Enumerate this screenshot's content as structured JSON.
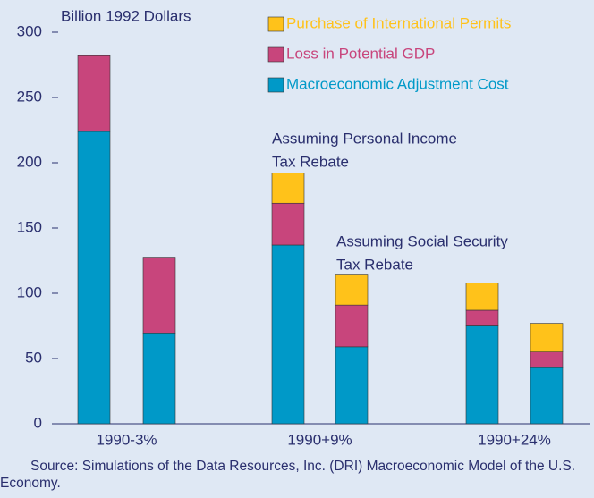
{
  "chart_data": {
    "type": "stacked_bar",
    "y_label": "Billion 1992 Dollars",
    "categories": [
      "1990-3%",
      null,
      "1990+9%",
      null,
      "1990+24%",
      null
    ],
    "series": [
      {
        "name": "Macroeconomic Adjustment Cost",
        "color": "#0099c8",
        "values": [
          224,
          69,
          137,
          59,
          75,
          43
        ]
      },
      {
        "name": "Loss in Potential GDP",
        "color": "#c8457c",
        "values": [
          58,
          58,
          32,
          32,
          12,
          12
        ]
      },
      {
        "name": "Purchase of International Permits",
        "color": "#ffc21a",
        "values": [
          0,
          0,
          23,
          23,
          21,
          22
        ]
      }
    ],
    "ylim": [
      0,
      300
    ],
    "yticks": [
      0,
      50,
      100,
      150,
      200,
      250,
      300
    ],
    "annotations": [
      [
        "Assuming Personal Income",
        "Tax Rebate"
      ],
      [
        "Assuming Social Security",
        "Tax Rebate"
      ]
    ],
    "source": "Source: Simulations of the Data Resources, Inc. (DRI) Macroeconomic Model of the U.S. Economy."
  }
}
